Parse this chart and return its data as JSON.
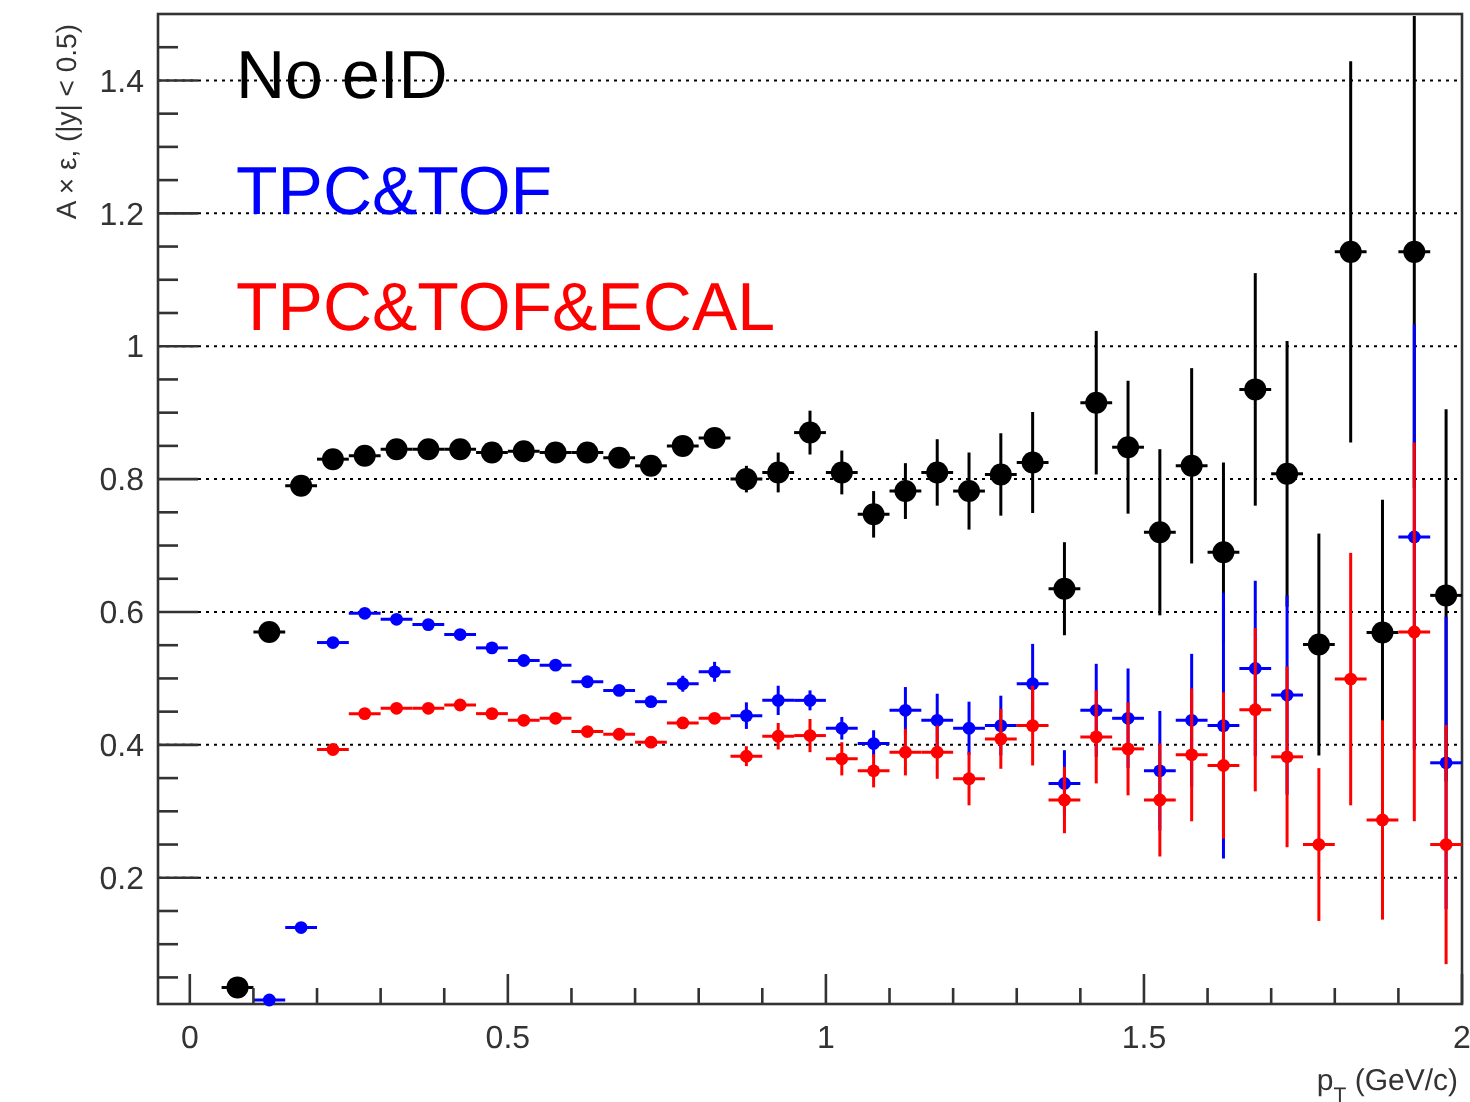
{
  "chart_data": {
    "type": "scatter",
    "xlabel": "p$_{T}$ (GeV/c)",
    "ylabel": "A × ε, (|y| < 0.5)",
    "x": [
      0.075,
      0.125,
      0.175,
      0.225,
      0.275,
      0.325,
      0.375,
      0.425,
      0.475,
      0.525,
      0.575,
      0.625,
      0.675,
      0.725,
      0.775,
      0.825,
      0.875,
      0.925,
      0.975,
      1.025,
      1.075,
      1.125,
      1.175,
      1.225,
      1.275,
      1.325,
      1.375,
      1.425,
      1.475,
      1.525,
      1.575,
      1.625,
      1.675,
      1.725,
      1.775,
      1.825,
      1.875,
      1.925,
      1.975
    ],
    "series": [
      {
        "name": "No eID",
        "color": "#000000",
        "values": [
          0.035,
          0.57,
          0.79,
          0.83,
          0.835,
          0.845,
          0.845,
          0.845,
          0.84,
          0.842,
          0.84,
          0.84,
          0.832,
          0.82,
          0.85,
          0.862,
          0.8,
          0.81,
          0.87,
          0.81,
          0.747,
          0.782,
          0.81,
          0.782,
          0.807,
          0.825,
          0.635,
          0.915,
          0.848,
          0.72,
          0.82,
          0.69,
          0.935,
          0.808,
          0.551,
          1.142,
          0.569,
          1.142,
          0.625
        ],
        "errors": [
          null,
          null,
          null,
          null,
          null,
          null,
          null,
          null,
          null,
          null,
          null,
          null,
          null,
          null,
          0.015,
          0.015,
          0.02,
          0.03,
          0.033,
          0.033,
          0.035,
          0.042,
          0.05,
          0.058,
          0.062,
          0.076,
          0.07,
          0.108,
          0.1,
          0.125,
          0.147,
          0.135,
          0.175,
          0.2,
          0.167,
          0.287,
          0.2,
          0.355,
          0.28
        ],
        "xerrors": [
          0.025,
          0.025,
          0.025,
          0.025,
          0.025,
          0.025,
          0.025,
          0.025,
          0.025,
          0.025,
          0.025,
          0.025,
          0.025,
          0.025,
          0.025,
          0.025,
          0.025,
          0.025,
          0.025,
          0.025,
          0.025,
          0.025,
          0.025,
          0.025,
          0.025,
          0.025,
          0.025,
          0.025,
          0.025,
          0.025,
          0.025,
          0.025,
          0.025,
          0.025,
          0.025,
          0.025,
          0.025,
          0.025,
          0.025
        ]
      },
      {
        "name": "TPC&TOF",
        "color": "#0000ff",
        "values": [
          null,
          0.016,
          0.125,
          0.554,
          0.598,
          0.589,
          0.581,
          0.566,
          0.546,
          0.527,
          0.52,
          0.495,
          0.482,
          0.465,
          0.492,
          0.51,
          0.444,
          0.467,
          0.467,
          0.425,
          0.402,
          0.452,
          0.437,
          0.425,
          0.429,
          0.492,
          0.342,
          0.452,
          0.44,
          0.361,
          0.437,
          0.429,
          0.515,
          0.475,
          null,
          null,
          null,
          0.713,
          0.373
        ],
        "errors": [
          null,
          null,
          null,
          null,
          null,
          null,
          null,
          null,
          null,
          null,
          null,
          null,
          null,
          null,
          0.012,
          0.015,
          0.02,
          0.022,
          0.015,
          0.017,
          0.02,
          0.035,
          0.04,
          0.04,
          0.045,
          0.06,
          0.05,
          0.07,
          0.075,
          0.09,
          0.1,
          0.2,
          0.132,
          0.15,
          null,
          null,
          null,
          0.32,
          0.22
        ],
        "xerrors": [
          null,
          0.025,
          0.025,
          0.025,
          0.025,
          0.025,
          0.025,
          0.025,
          0.025,
          0.025,
          0.025,
          0.025,
          0.025,
          0.025,
          0.025,
          0.025,
          0.025,
          0.025,
          0.025,
          0.025,
          0.025,
          0.025,
          0.025,
          0.025,
          0.025,
          0.025,
          0.025,
          0.025,
          0.025,
          0.025,
          0.025,
          0.025,
          0.025,
          0.025,
          null,
          null,
          null,
          0.025,
          0.025
        ]
      },
      {
        "name": "TPC&TOF&ECAL",
        "color": "#ff0000",
        "values": [
          null,
          null,
          null,
          0.393,
          0.447,
          0.455,
          0.455,
          0.46,
          0.447,
          0.437,
          0.44,
          0.42,
          0.416,
          0.404,
          0.433,
          0.44,
          0.383,
          0.413,
          0.414,
          0.379,
          0.361,
          0.389,
          0.389,
          0.349,
          0.409,
          0.429,
          0.317,
          0.412,
          0.394,
          0.317,
          0.385,
          0.369,
          0.453,
          0.382,
          0.25,
          0.499,
          0.287,
          0.57,
          0.25
        ],
        "errors": [
          null,
          null,
          null,
          null,
          null,
          null,
          null,
          null,
          null,
          null,
          null,
          null,
          null,
          null,
          null,
          null,
          0.015,
          0.02,
          0.025,
          0.025,
          0.025,
          0.035,
          0.04,
          0.04,
          0.045,
          0.06,
          0.05,
          0.07,
          0.07,
          0.085,
          0.1,
          0.11,
          0.123,
          0.136,
          0.115,
          0.19,
          0.15,
          0.285,
          0.18
        ],
        "xerrors": [
          null,
          null,
          null,
          0.025,
          0.025,
          0.025,
          0.025,
          0.025,
          0.025,
          0.025,
          0.025,
          0.025,
          0.025,
          0.025,
          0.025,
          0.025,
          0.025,
          0.025,
          0.025,
          0.025,
          0.025,
          0.025,
          0.025,
          0.025,
          0.025,
          0.025,
          0.025,
          0.025,
          0.025,
          0.025,
          0.025,
          0.025,
          0.025,
          0.025,
          0.025,
          0.025,
          0.025,
          0.025,
          0.025
        ]
      }
    ],
    "xlim": [
      -0.05,
      2
    ],
    "xticks": [
      0,
      {
        "value": 0.1,
        "label": null
      },
      {
        "value": 0.2,
        "label": null
      },
      {
        "value": 0.3,
        "label": null
      },
      {
        "value": 0.4,
        "label": null
      },
      0.5,
      {
        "value": 0.6,
        "label": null
      },
      {
        "value": 0.7,
        "label": null
      },
      {
        "value": 0.8,
        "label": null
      },
      {
        "value": 0.9,
        "label": null
      },
      1,
      {
        "value": 1.1,
        "label": null
      },
      {
        "value": 1.2,
        "label": null
      },
      {
        "value": 1.3,
        "label": null
      },
      {
        "value": 1.4,
        "label": null
      },
      1.5,
      {
        "value": 1.6,
        "label": null
      },
      {
        "value": 1.7,
        "label": null
      },
      {
        "value": 1.8,
        "label": null
      },
      {
        "value": 1.9,
        "label": null
      },
      2
    ],
    "ylim": [
      0.01,
      1.5
    ],
    "yticks": [
      {
        "value": 0.05,
        "label": null
      },
      {
        "value": 0.1,
        "label": null
      },
      {
        "value": 0.15,
        "label": null
      },
      0.2,
      {
        "value": 0.25,
        "label": null
      },
      {
        "value": 0.3,
        "label": null
      },
      {
        "value": 0.35,
        "label": null
      },
      0.4,
      {
        "value": 0.45,
        "label": null
      },
      {
        "value": 0.5,
        "label": null
      },
      {
        "value": 0.55,
        "label": null
      },
      0.6,
      {
        "value": 0.65,
        "label": null
      },
      {
        "value": 0.7,
        "label": null
      },
      {
        "value": 0.75,
        "label": null
      },
      0.8,
      {
        "value": 0.85,
        "label": null
      },
      {
        "value": 0.9,
        "label": null
      },
      {
        "value": 0.95,
        "label": null
      },
      1,
      {
        "value": 1.05,
        "label": null
      },
      {
        "value": 1.1,
        "label": null
      },
      {
        "value": 1.15,
        "label": null
      },
      1.2,
      {
        "value": 1.25,
        "label": null
      },
      {
        "value": 1.3,
        "label": null
      },
      {
        "value": 1.35,
        "label": null
      },
      1.4,
      {
        "value": 1.45,
        "label": null
      }
    ],
    "grid": "y",
    "legend": "top left",
    "marker": "circle"
  }
}
